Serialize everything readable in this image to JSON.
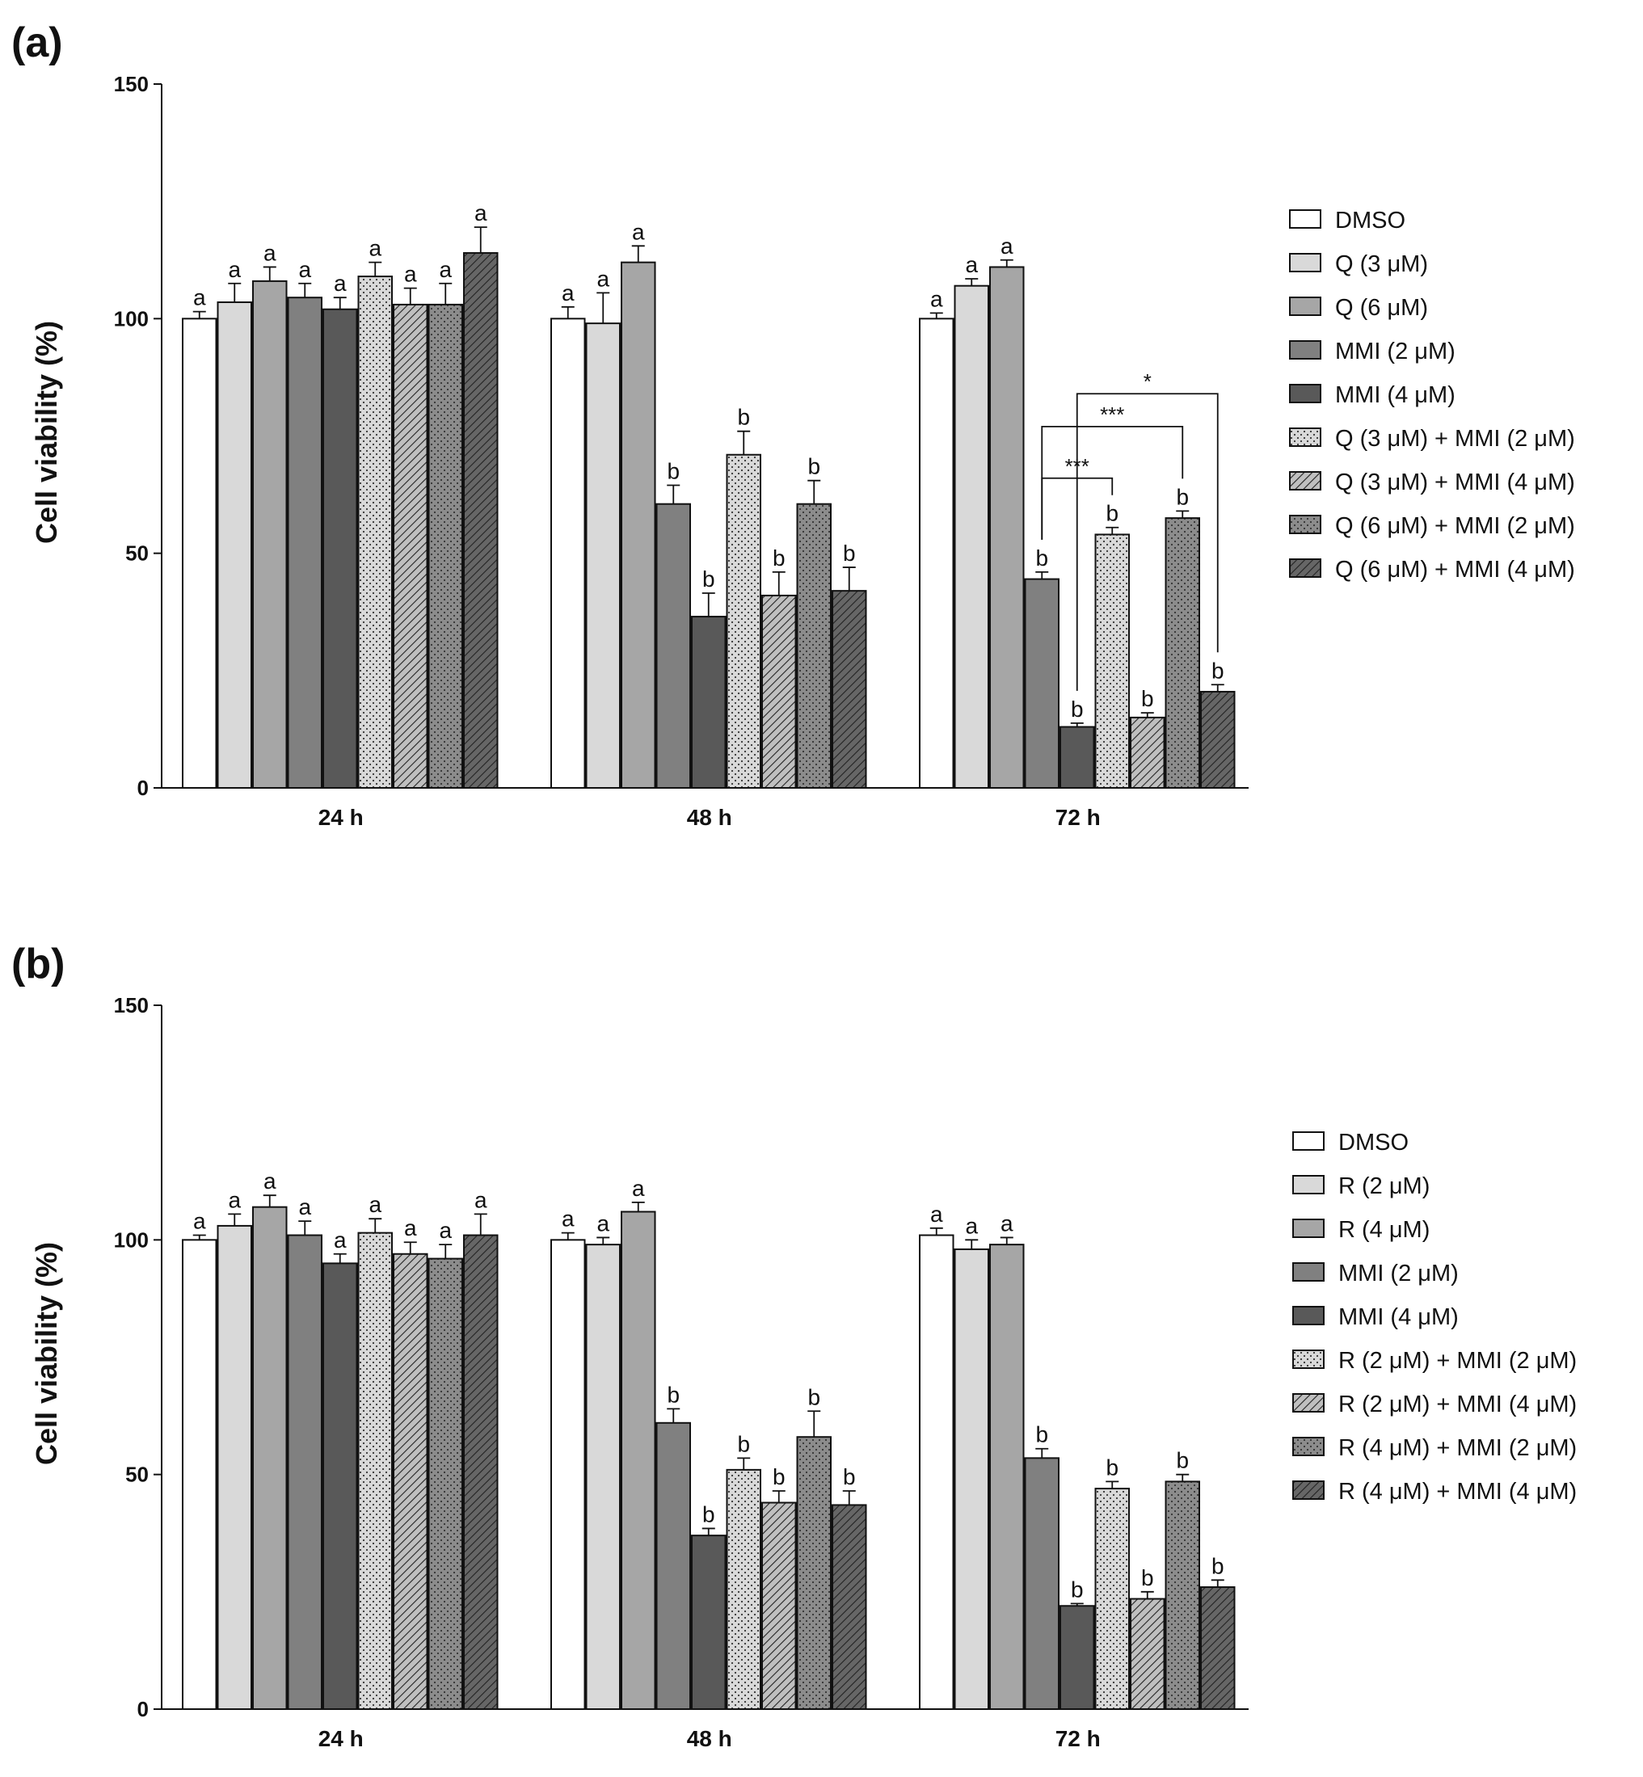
{
  "chart_data": [
    {
      "type": "bar",
      "panel_label": "(a)",
      "ylabel": "Cell viability (%)",
      "xlabel": "",
      "ylim": [
        0,
        150
      ],
      "yticks": [
        "0",
        "50",
        "100",
        "150"
      ],
      "categories": [
        "24 h",
        "48 h",
        "72 h"
      ],
      "legend_position": "right",
      "series": [
        {
          "name": "DMSO",
          "pattern": "solid",
          "color": "#ffffff",
          "values": [
            100,
            100,
            100
          ],
          "errors": [
            1.5,
            2.5,
            1.2
          ],
          "letters": [
            "a",
            "a",
            "a"
          ]
        },
        {
          "name": "Q (3 μM)",
          "pattern": "solid",
          "color": "#d9d9d9",
          "values": [
            103.5,
            99,
            107
          ],
          "errors": [
            4,
            6.5,
            1.5
          ],
          "letters": [
            "a",
            "a",
            "a"
          ]
        },
        {
          "name": "Q (6 μM)",
          "pattern": "solid",
          "color": "#a6a6a6",
          "values": [
            108,
            112,
            111
          ],
          "errors": [
            3,
            3.5,
            1.5
          ],
          "letters": [
            "a",
            "a",
            "a"
          ]
        },
        {
          "name": "MMI (2 μM)",
          "pattern": "solid",
          "color": "#808080",
          "values": [
            104.5,
            60.5,
            44.5
          ],
          "errors": [
            3,
            4,
            1.5
          ],
          "letters": [
            "a",
            "b",
            "b"
          ]
        },
        {
          "name": "MMI (4 μM)",
          "pattern": "solid",
          "color": "#595959",
          "values": [
            102,
            36.5,
            13
          ],
          "errors": [
            2.5,
            5,
            0.8
          ],
          "letters": [
            "a",
            "b",
            "b"
          ]
        },
        {
          "name": "Q (3 μM) + MMI (2 μM)",
          "pattern": "dots",
          "color": "#d9d9d9",
          "values": [
            109,
            71,
            54
          ],
          "errors": [
            3,
            5,
            1.5
          ],
          "letters": [
            "a",
            "b",
            "b"
          ]
        },
        {
          "name": "Q (3 μM) + MMI (4 μM)",
          "pattern": "hatch",
          "color": "#bfbfbf",
          "values": [
            103,
            41,
            15
          ],
          "errors": [
            3.5,
            5,
            1
          ],
          "letters": [
            "a",
            "b",
            "b"
          ]
        },
        {
          "name": "Q (6 μM) + MMI (2 μM)",
          "pattern": "dots",
          "color": "#8c8c8c",
          "values": [
            103,
            60.5,
            57.5
          ],
          "errors": [
            4.5,
            5,
            1.5
          ],
          "letters": [
            "a",
            "b",
            "b"
          ]
        },
        {
          "name": "Q (6 μM) + MMI (4 μM)",
          "pattern": "hatch",
          "color": "#666666",
          "values": [
            114,
            42,
            20.5
          ],
          "errors": [
            5.5,
            5,
            1.5
          ],
          "letters": [
            "a",
            "b",
            "b"
          ]
        }
      ],
      "significance_brackets": [
        {
          "category": "72 h",
          "from_series": 3,
          "to_series": 5,
          "label": "***",
          "y": 66
        },
        {
          "category": "72 h",
          "from_series": 3,
          "to_series": 7,
          "label": "***",
          "y": 77
        },
        {
          "category": "72 h",
          "from_series": 4,
          "to_series": 8,
          "label": "*",
          "y": 84
        }
      ]
    },
    {
      "type": "bar",
      "panel_label": "(b)",
      "ylabel": "Cell viability (%)",
      "xlabel": "",
      "ylim": [
        0,
        150
      ],
      "yticks": [
        "0",
        "50",
        "100",
        "150"
      ],
      "categories": [
        "24 h",
        "48 h",
        "72 h"
      ],
      "legend_position": "right",
      "series": [
        {
          "name": "DMSO",
          "pattern": "solid",
          "color": "#ffffff",
          "values": [
            100,
            100,
            101
          ],
          "errors": [
            1,
            1.5,
            1.5
          ],
          "letters": [
            "a",
            "a",
            "a"
          ]
        },
        {
          "name": "R (2 μM)",
          "pattern": "solid",
          "color": "#d9d9d9",
          "values": [
            103,
            99,
            98
          ],
          "errors": [
            2.5,
            1.5,
            2
          ],
          "letters": [
            "a",
            "a",
            "a"
          ]
        },
        {
          "name": "R (4 μM)",
          "pattern": "solid",
          "color": "#a6a6a6",
          "values": [
            107,
            106,
            99
          ],
          "errors": [
            2.5,
            2,
            1.5
          ],
          "letters": [
            "a",
            "a",
            "a"
          ]
        },
        {
          "name": "MMI (2 μM)",
          "pattern": "solid",
          "color": "#808080",
          "values": [
            101,
            61,
            53.5
          ],
          "errors": [
            3,
            3,
            2
          ],
          "letters": [
            "a",
            "b",
            "b"
          ]
        },
        {
          "name": "MMI (4 μM)",
          "pattern": "solid",
          "color": "#595959",
          "values": [
            95,
            37,
            22
          ],
          "errors": [
            2,
            1.5,
            0.5
          ],
          "letters": [
            "a",
            "b",
            "b"
          ]
        },
        {
          "name": "R (2 μM) + MMI (2 μM)",
          "pattern": "dots",
          "color": "#d9d9d9",
          "values": [
            101.5,
            51,
            47
          ],
          "errors": [
            3,
            2.5,
            1.5
          ],
          "letters": [
            "a",
            "b",
            "b"
          ]
        },
        {
          "name": "R (2 μM) + MMI (4 μM)",
          "pattern": "hatch",
          "color": "#bfbfbf",
          "values": [
            97,
            44,
            23.5
          ],
          "errors": [
            2.5,
            2.5,
            1.5
          ],
          "letters": [
            "a",
            "b",
            "b"
          ]
        },
        {
          "name": "R (4 μM) + MMI (2 μM)",
          "pattern": "dots",
          "color": "#8c8c8c",
          "values": [
            96,
            58,
            48.5
          ],
          "errors": [
            3,
            5.5,
            1.5
          ],
          "letters": [
            "a",
            "b",
            "b"
          ]
        },
        {
          "name": "R (4 μM) + MMI (4 μM)",
          "pattern": "hatch",
          "color": "#666666",
          "values": [
            101,
            43.5,
            26
          ],
          "errors": [
            4.5,
            3,
            1.5
          ],
          "letters": [
            "a",
            "b",
            "b"
          ]
        }
      ],
      "significance_brackets": []
    }
  ]
}
